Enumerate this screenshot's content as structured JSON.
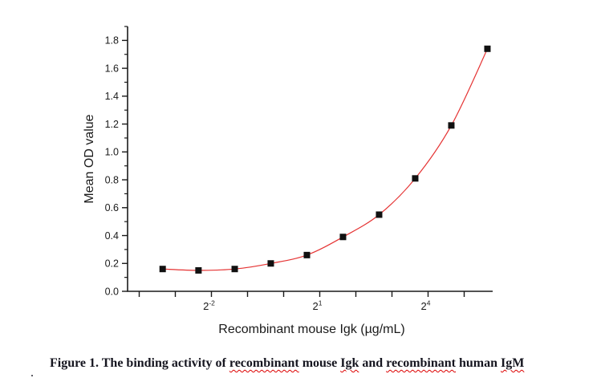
{
  "chart_data": {
    "type": "scatter",
    "title": "",
    "xlabel": "Recombinant mouse Igk (µg/mL)",
    "ylabel": "Mean OD value",
    "x_scale": "log2",
    "x": [
      0.098,
      0.195,
      0.391,
      0.781,
      1.563,
      3.125,
      6.25,
      12.5,
      25,
      50
    ],
    "y": [
      0.16,
      0.15,
      0.16,
      0.2,
      0.26,
      0.39,
      0.55,
      0.81,
      1.19,
      1.74
    ],
    "ylim": [
      0,
      1.9
    ],
    "grid": false,
    "marker": "filled-square",
    "fit_curve": "smooth exponential fit through points",
    "y_ticks": {
      "major": [
        0.0,
        0.2,
        0.4,
        0.6,
        0.8,
        1.0,
        1.2,
        1.4,
        1.6,
        1.8
      ],
      "major_labels": [
        "0.0",
        "0.2",
        "0.4",
        "0.6",
        "0.8",
        "1.0",
        "1.2",
        "1.4",
        "1.6",
        "1.8"
      ],
      "minor": [
        0.1,
        0.3,
        0.5,
        0.7,
        0.9,
        1.1,
        1.3,
        1.5,
        1.7,
        1.9
      ]
    },
    "x_ticks": {
      "base": "2",
      "exponents": [
        -4,
        -3,
        -2,
        -1,
        0,
        1,
        2,
        3,
        4,
        5
      ],
      "labeled": [
        {
          "exponent": -2,
          "superscript": "-2"
        },
        {
          "exponent": 1,
          "superscript": "1"
        },
        {
          "exponent": 4,
          "superscript": "4"
        }
      ]
    },
    "colors": {
      "curve": "#e53333",
      "marker": "#111111",
      "axis": "#1a1a1a",
      "text": "#1a1a1a"
    }
  },
  "caption": {
    "segments": [
      {
        "text": "Figure 1. The binding activity of ",
        "squiggle": false
      },
      {
        "text": "recombinant",
        "squiggle": true
      },
      {
        "text": " mouse ",
        "squiggle": false
      },
      {
        "text": "Igk",
        "squiggle": true
      },
      {
        "text": " and ",
        "squiggle": false
      },
      {
        "text": "recombinant",
        "squiggle": true
      },
      {
        "text": " human ",
        "squiggle": false
      },
      {
        "text": "IgM",
        "squiggle": true
      }
    ],
    "squiggle_color": "#dd0000",
    "stray_period": "."
  }
}
